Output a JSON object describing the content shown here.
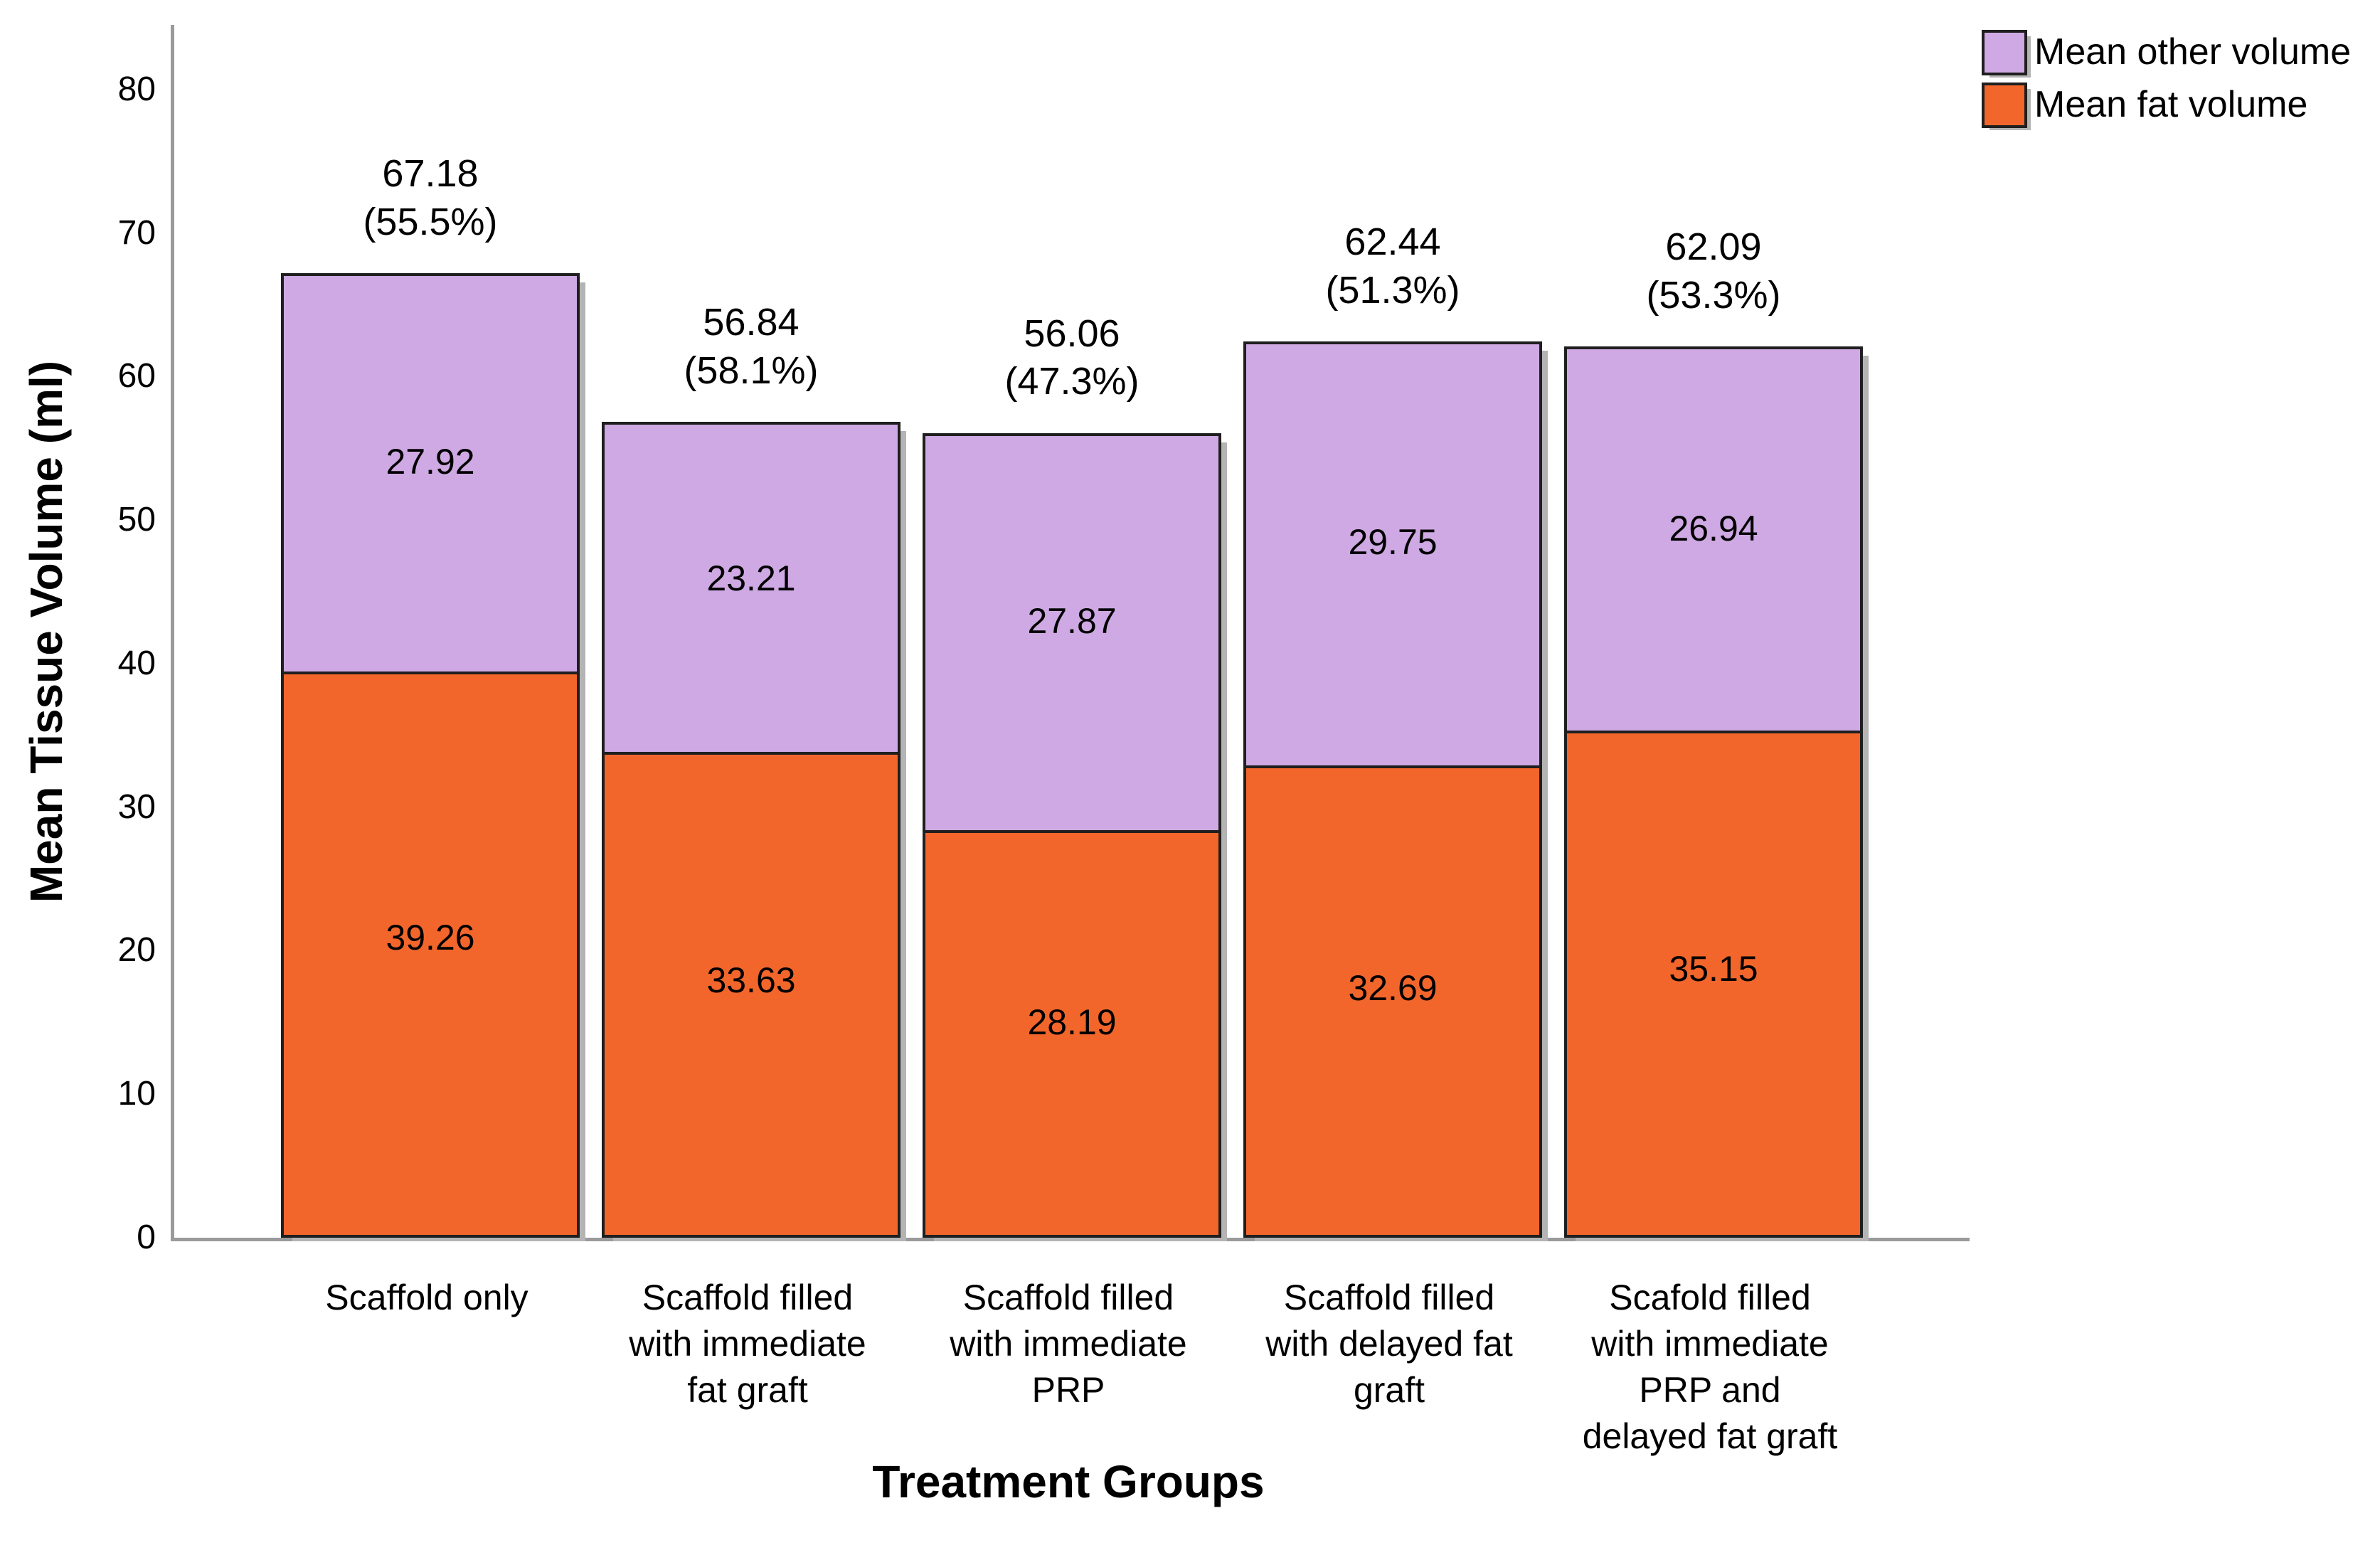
{
  "chart_data": {
    "type": "bar",
    "stacked": true,
    "title": "",
    "xlabel": "Treatment Groups",
    "ylabel": "Mean Tissue Volume (ml)",
    "ylim": [
      0,
      84.5
    ],
    "yticks": [
      0,
      10,
      20,
      30,
      40,
      50,
      60,
      70,
      80
    ],
    "grid": false,
    "legend_position": "top-right",
    "categories": [
      "Scaffold only",
      "Scaffold filled\nwith immediate\nfat graft",
      "Scaffold filled\nwith immediate\nPRP",
      "Scaffold filled\nwith delayed fat\ngraft",
      "Scafold filled\nwith immediate\nPRP and\ndelayed fat graft"
    ],
    "series": [
      {
        "name": "Mean fat volume",
        "color": "#F2662B",
        "values": [
          39.26,
          33.63,
          28.19,
          32.69,
          35.15
        ]
      },
      {
        "name": "Mean other volume",
        "color": "#CFA9E3",
        "values": [
          27.92,
          23.21,
          27.87,
          29.75,
          26.94
        ]
      }
    ],
    "totals": [
      {
        "value": "67.18",
        "pct": "(55.5%)"
      },
      {
        "value": "56.84",
        "pct": "(58.1%)"
      },
      {
        "value": "56.06",
        "pct": "(47.3%)"
      },
      {
        "value": "62.44",
        "pct": "(51.3%)"
      },
      {
        "value": "62.09",
        "pct": "(53.3%)"
      }
    ],
    "legend": [
      "Mean other volume",
      "Mean fat volume"
    ],
    "colors": {
      "bar_border": "#1f1f1f",
      "axis": "#9a9a9a",
      "shadow": "#b4b4b4"
    }
  }
}
